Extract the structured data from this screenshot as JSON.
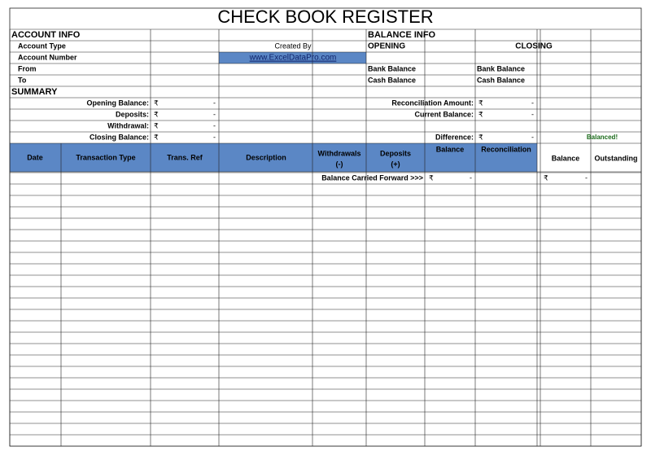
{
  "title": "CHECK BOOK REGISTER",
  "account_info": {
    "heading": "ACCOUNT INFO",
    "fields": [
      "Account Type",
      "Account Number",
      "From",
      "To"
    ],
    "created_by_label": "Created By",
    "created_by": "www.ExcelDataPro.com"
  },
  "balance_info": {
    "heading": "BALANCE INFO",
    "opening": "OPENING",
    "closing": "CLOSING",
    "opening_rows": [
      "Bank Balance",
      "Cash Balance"
    ],
    "closing_rows": [
      "Bank Balance",
      "Cash Balance"
    ]
  },
  "summary": {
    "heading": "SUMMARY",
    "left": [
      {
        "label": "Opening Balance:",
        "currency": "₹",
        "amount": "-"
      },
      {
        "label": "Deposits:",
        "currency": "₹",
        "amount": "-"
      },
      {
        "label": "Withdrawal:",
        "currency": "₹",
        "amount": "-"
      },
      {
        "label": "Closing Balance:",
        "currency": "₹",
        "amount": "-"
      }
    ],
    "right": [
      {
        "label": "Reconciliation Amount:",
        "currency": "₹",
        "amount": "-"
      },
      {
        "label": "Current Balance:",
        "currency": "₹",
        "amount": "-"
      },
      {
        "label": "Difference:",
        "currency": "₹",
        "amount": "-"
      }
    ],
    "status": "Balanced!"
  },
  "table": {
    "headers": [
      [
        "Date"
      ],
      [
        "Transaction Type"
      ],
      [
        "Trans. Ref"
      ],
      [
        "Description"
      ],
      [
        "Withdrawals",
        "(-)"
      ],
      [
        "Deposits",
        "(+)"
      ],
      [
        "Balance"
      ],
      [
        "Reconciliation"
      ],
      [
        "Balance"
      ],
      [
        "Outstanding"
      ]
    ],
    "carry_forward": {
      "label": "Balance Carried Forward >>>",
      "balance_currency": "₹",
      "balance_amount": "-",
      "bank_currency": "₹",
      "bank_amount": "-"
    }
  }
}
